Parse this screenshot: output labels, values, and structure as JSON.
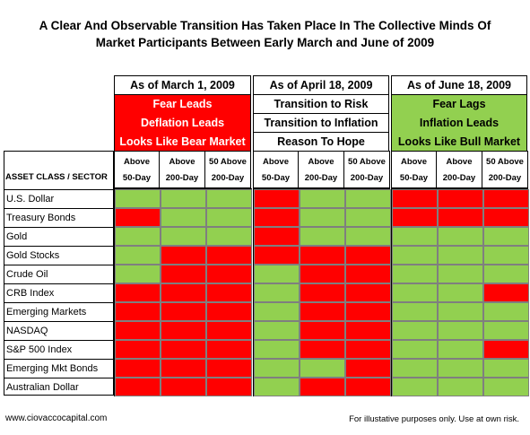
{
  "title": {
    "line1": "A Clear And Observable Transition Has Taken Place In The Collective Minds Of",
    "line2": "Market Participants Between Early March and June of 2009"
  },
  "asset_header": "ASSET CLASS / SECTOR",
  "colors": {
    "green": "#92d050",
    "red": "#ff0000"
  },
  "periods": [
    {
      "label": "As of March 1, 2009",
      "notes": [
        {
          "text": "Fear Leads",
          "style": "red"
        },
        {
          "text": "Deflation Leads",
          "style": "red"
        },
        {
          "text": "Looks Like Bear Market",
          "style": "red"
        }
      ],
      "columns": [
        {
          "line1": "Above",
          "line2": "50-Day"
        },
        {
          "line1": "Above",
          "line2": "200-Day"
        },
        {
          "line1": "50 Above",
          "line2": "200-Day"
        }
      ]
    },
    {
      "label": "As of April 18, 2009",
      "notes": [
        {
          "text": "Transition to Risk",
          "style": "white"
        },
        {
          "text": "Transition to Inflation",
          "style": "white"
        },
        {
          "text": "Reason To Hope",
          "style": "white"
        }
      ],
      "columns": [
        {
          "line1": "Above",
          "line2": "50-Day"
        },
        {
          "line1": "Above",
          "line2": "200-Day"
        },
        {
          "line1": "50 Above",
          "line2": "200-Day"
        }
      ]
    },
    {
      "label": "As of June 18, 2009",
      "notes": [
        {
          "text": "Fear Lags",
          "style": "green"
        },
        {
          "text": "Inflation Leads",
          "style": "green"
        },
        {
          "text": "Looks Like Bull Market",
          "style": "green"
        }
      ],
      "columns": [
        {
          "line1": "Above",
          "line2": "50-Day"
        },
        {
          "line1": "Above",
          "line2": "200-Day"
        },
        {
          "line1": "50 Above",
          "line2": "200-Day"
        }
      ]
    }
  ],
  "rows": [
    {
      "label": "U.S. Dollar",
      "cells": [
        "G",
        "G",
        "G",
        "R",
        "G",
        "G",
        "R",
        "R",
        "R"
      ]
    },
    {
      "label": "Treasury Bonds",
      "cells": [
        "R",
        "G",
        "G",
        "R",
        "G",
        "G",
        "R",
        "R",
        "R"
      ]
    },
    {
      "label": "Gold",
      "cells": [
        "G",
        "G",
        "G",
        "R",
        "G",
        "G",
        "G",
        "G",
        "G"
      ]
    },
    {
      "label": "Gold Stocks",
      "cells": [
        "G",
        "R",
        "R",
        "R",
        "R",
        "R",
        "G",
        "G",
        "G"
      ]
    },
    {
      "label": "Crude Oil",
      "cells": [
        "G",
        "R",
        "R",
        "G",
        "R",
        "R",
        "G",
        "G",
        "G"
      ]
    },
    {
      "label": "CRB Index",
      "cells": [
        "R",
        "R",
        "R",
        "G",
        "R",
        "R",
        "G",
        "G",
        "R"
      ]
    },
    {
      "label": "Emerging Markets",
      "cells": [
        "R",
        "R",
        "R",
        "G",
        "R",
        "R",
        "G",
        "G",
        "G"
      ]
    },
    {
      "label": "NASDAQ",
      "cells": [
        "R",
        "R",
        "R",
        "G",
        "R",
        "R",
        "G",
        "G",
        "G"
      ]
    },
    {
      "label": "S&P 500 Index",
      "cells": [
        "R",
        "R",
        "R",
        "G",
        "R",
        "R",
        "G",
        "G",
        "R"
      ]
    },
    {
      "label": "Emerging Mkt Bonds",
      "cells": [
        "R",
        "R",
        "R",
        "G",
        "G",
        "R",
        "G",
        "G",
        "G"
      ]
    },
    {
      "label": "Australian Dollar",
      "cells": [
        "R",
        "R",
        "R",
        "G",
        "R",
        "R",
        "G",
        "G",
        "G"
      ]
    }
  ],
  "footer": {
    "website": "www.ciovaccocapital.com",
    "disclaimer": "For illustative purposes only.  Use at own risk."
  }
}
